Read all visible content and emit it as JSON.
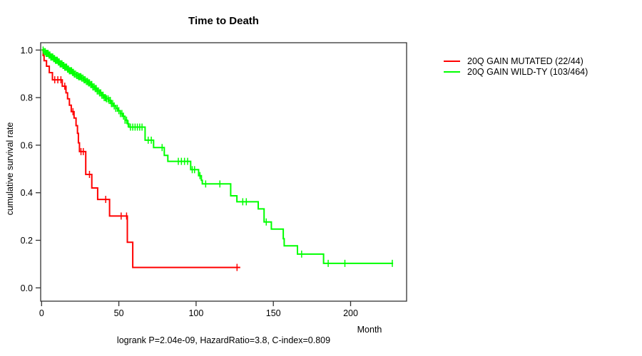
{
  "title": "Time to Death",
  "footer": "logrank P=2.04e-09, HazardRatio=3.8, C-index=0.809",
  "axes": {
    "x_label": "Month",
    "y_label": "cumulative survival rate",
    "x_ticks": [
      "0",
      "50",
      "100",
      "150",
      "200"
    ],
    "y_ticks": [
      "0.0",
      "0.2",
      "0.4",
      "0.6",
      "0.8",
      "1.0"
    ]
  },
  "legend": {
    "items": [
      {
        "label": "20Q GAIN MUTATED (22/44)",
        "color": "#ff0000"
      },
      {
        "label": "20Q GAIN WILD-TY (103/464)",
        "color": "#00ff00"
      }
    ]
  },
  "chart_data": {
    "type": "line",
    "subtype": "kaplan-meier-step",
    "title": "Time to Death",
    "xlabel": "Month",
    "ylabel": "cumulative survival rate",
    "xlim": [
      0,
      236
    ],
    "ylim": [
      0.0,
      1.0
    ],
    "x_tick_values": [
      0,
      50,
      100,
      150,
      200
    ],
    "y_tick_values": [
      0.0,
      0.2,
      0.4,
      0.6,
      0.8,
      1.0
    ],
    "grid": false,
    "legend_position": "right-outside",
    "annotation": "logrank P=2.04e-09, HazardRatio=3.8, C-index=0.809",
    "series": [
      {
        "name": "20Q GAIN MUTATED (22/44)",
        "color": "#ff0000",
        "end_month": 128.6,
        "steps": [
          [
            0,
            1.0
          ],
          [
            1,
            0.977
          ],
          [
            1.6,
            0.955
          ],
          [
            3.2,
            0.932
          ],
          [
            5,
            0.905
          ],
          [
            7,
            0.875
          ],
          [
            13.4,
            0.848
          ],
          [
            15.8,
            0.82
          ],
          [
            16.8,
            0.795
          ],
          [
            18,
            0.768
          ],
          [
            19.2,
            0.741
          ],
          [
            21,
            0.714
          ],
          [
            22.3,
            0.682
          ],
          [
            23.2,
            0.65
          ],
          [
            23.8,
            0.61
          ],
          [
            24.5,
            0.573
          ],
          [
            28.6,
            0.477
          ],
          [
            32.5,
            0.42
          ],
          [
            36.3,
            0.372
          ],
          [
            44,
            0.302
          ],
          [
            55.5,
            0.192
          ],
          [
            59,
            0.086
          ]
        ],
        "censor_months": [
          8.5,
          10.5,
          12.5,
          15,
          20.3,
          25.5,
          27,
          31,
          41.5,
          51.5,
          55,
          126.5
        ]
      },
      {
        "name": "20Q GAIN WILD-TY (103/464)",
        "color": "#00ff00",
        "end_month": 227.5,
        "steps": [
          [
            0,
            1.0
          ],
          [
            1.5,
            0.993
          ],
          [
            3,
            0.986
          ],
          [
            4.5,
            0.979
          ],
          [
            6,
            0.971
          ],
          [
            7.5,
            0.964
          ],
          [
            9,
            0.957
          ],
          [
            10.5,
            0.95
          ],
          [
            12,
            0.942
          ],
          [
            13.5,
            0.935
          ],
          [
            15,
            0.928
          ],
          [
            16.5,
            0.92
          ],
          [
            18,
            0.913
          ],
          [
            19.5,
            0.906
          ],
          [
            21,
            0.899
          ],
          [
            22.5,
            0.893
          ],
          [
            24,
            0.888
          ],
          [
            25.5,
            0.882
          ],
          [
            27,
            0.875
          ],
          [
            28.5,
            0.868
          ],
          [
            30,
            0.862
          ],
          [
            31.5,
            0.855
          ],
          [
            33,
            0.845
          ],
          [
            34.5,
            0.838
          ],
          [
            36,
            0.828
          ],
          [
            37.5,
            0.82
          ],
          [
            39,
            0.81
          ],
          [
            40.5,
            0.8
          ],
          [
            42,
            0.795
          ],
          [
            43.5,
            0.788
          ],
          [
            45,
            0.775
          ],
          [
            46.5,
            0.765
          ],
          [
            48,
            0.755
          ],
          [
            49.5,
            0.745
          ],
          [
            51,
            0.733
          ],
          [
            52.5,
            0.722
          ],
          [
            54,
            0.705
          ],
          [
            55.5,
            0.69
          ],
          [
            56.5,
            0.676
          ],
          [
            67,
            0.621
          ],
          [
            72.5,
            0.59
          ],
          [
            79.4,
            0.557
          ],
          [
            81.7,
            0.532
          ],
          [
            96.5,
            0.497
          ],
          [
            101.6,
            0.472
          ],
          [
            103.4,
            0.452
          ],
          [
            104,
            0.437
          ],
          [
            122.4,
            0.387
          ],
          [
            126.4,
            0.362
          ],
          [
            140.2,
            0.332
          ],
          [
            144,
            0.277
          ],
          [
            148.7,
            0.247
          ],
          [
            156.4,
            0.207
          ],
          [
            157,
            0.177
          ],
          [
            165.6,
            0.142
          ],
          [
            182.5,
            0.103
          ]
        ],
        "censor_months": [
          1,
          1.7,
          2.4,
          3,
          3.6,
          4.2,
          4.8,
          5.4,
          6,
          6.6,
          7.2,
          7.8,
          8.4,
          9,
          9.6,
          10.2,
          10.8,
          11.4,
          12,
          12.6,
          13.2,
          13.8,
          14.4,
          15,
          15.6,
          16.2,
          16.8,
          17.4,
          18,
          18.7,
          19.4,
          20,
          20.6,
          21.2,
          22,
          22.7,
          23.4,
          24,
          24.7,
          25.4,
          26,
          26.8,
          27.5,
          28.2,
          29,
          29.7,
          30.4,
          31,
          31.8,
          32.5,
          33.2,
          34,
          34.7,
          35.4,
          36,
          36.8,
          37.5,
          38.3,
          39,
          39.8,
          40.5,
          41.3,
          42,
          43,
          43.7,
          44.5,
          45.2,
          46,
          47,
          48,
          49,
          50,
          51,
          52,
          53,
          54,
          55,
          56,
          57.5,
          59,
          60.5,
          62,
          63.5,
          65,
          69,
          71,
          78,
          88.5,
          90.5,
          92.5,
          94.5,
          97.5,
          99,
          102.5,
          106.2,
          115.4,
          130.2,
          132.5,
          145.4,
          168.3,
          185.5,
          196.3,
          227
        ]
      }
    ]
  }
}
